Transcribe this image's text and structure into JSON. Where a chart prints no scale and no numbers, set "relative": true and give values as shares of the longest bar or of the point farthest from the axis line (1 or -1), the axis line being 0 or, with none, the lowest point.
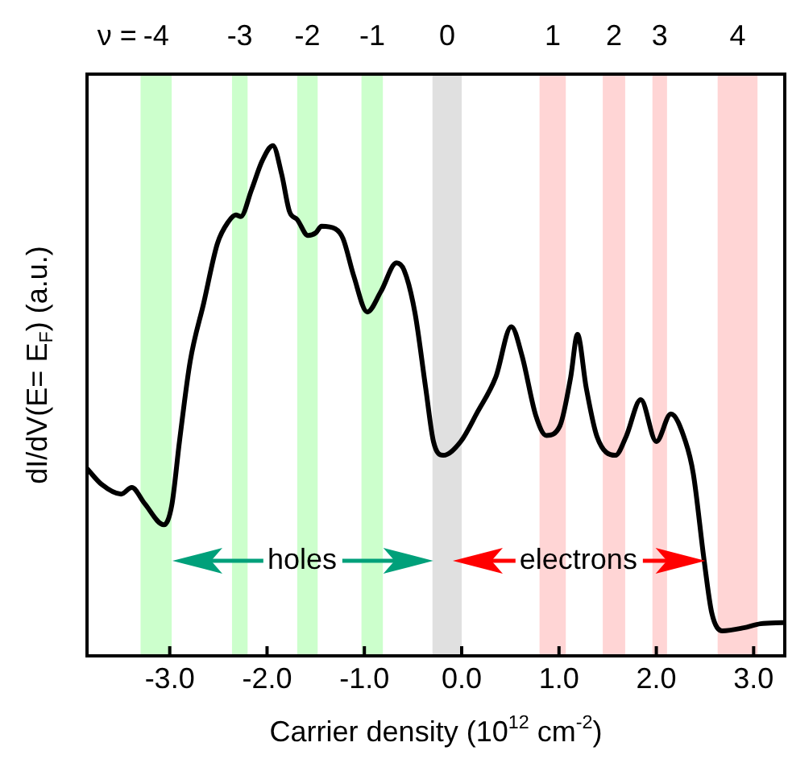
{
  "chart_data": {
    "type": "line",
    "relative": true,
    "xlabel": "Carrier density (10$^{12}$ cm$^{-2}$)",
    "ylabel": "dI/dV(E= E$_{F}$) (a.u.)",
    "xlim": [
      -3.85,
      3.32
    ],
    "xticks": [
      {
        "value": -3,
        "label": "-3.0"
      },
      {
        "value": -2,
        "label": "-2.0"
      },
      {
        "value": -1,
        "label": "-1.0"
      },
      {
        "value": 0,
        "label": "0.0"
      },
      {
        "value": 1,
        "label": "1.0"
      },
      {
        "value": 2,
        "label": "2.0"
      },
      {
        "value": 3,
        "label": "3.0"
      }
    ],
    "grid": false,
    "legend": false,
    "marker": "none",
    "line_style": "solid",
    "tick_labels": "x",
    "series": [
      {
        "color": "#000000",
        "x": [
          -3.85,
          -3.7,
          -3.5,
          -3.39,
          -3.26,
          -3.06,
          -2.98,
          -2.9,
          -2.79,
          -2.65,
          -2.51,
          -2.4,
          -2.32,
          -2.27,
          -2.16,
          -2.05,
          -1.94,
          -1.85,
          -1.77,
          -1.69,
          -1.58,
          -1.5,
          -1.44,
          -1.3,
          -1.22,
          -1.11,
          -0.97,
          -0.83,
          -0.67,
          -0.59,
          -0.48,
          -0.37,
          -0.29,
          -0.19,
          -0.01,
          0.16,
          0.35,
          0.51,
          0.62,
          0.76,
          0.87,
          1.01,
          1.12,
          1.19,
          1.28,
          1.39,
          1.58,
          1.69,
          1.84,
          2.0,
          2.15,
          2.3,
          2.38,
          2.49,
          2.57,
          2.68,
          2.9,
          3.07,
          3.3
        ],
        "values": [
          0.367,
          0.336,
          0.317,
          0.33,
          0.299,
          0.257,
          0.294,
          0.42,
          0.577,
          0.692,
          0.808,
          0.85,
          0.864,
          0.861,
          0.913,
          0.97,
          1.0,
          0.944,
          0.871,
          0.855,
          0.824,
          0.829,
          0.842,
          0.837,
          0.818,
          0.745,
          0.674,
          0.714,
          0.77,
          0.755,
          0.672,
          0.525,
          0.42,
          0.393,
          0.42,
          0.477,
          0.546,
          0.645,
          0.588,
          0.472,
          0.432,
          0.451,
          0.546,
          0.63,
          0.525,
          0.43,
          0.393,
          0.43,
          0.502,
          0.42,
          0.474,
          0.42,
          0.357,
          0.189,
          0.084,
          0.049,
          0.055,
          0.063,
          0.065
        ]
      }
    ],
    "bands": [
      {
        "axis": "x",
        "from": -3.3,
        "to": -2.98,
        "label": "-4",
        "color": "#ccffcc"
      },
      {
        "axis": "x",
        "from": -2.36,
        "to": -2.2,
        "label": "-3",
        "color": "#ccffcc"
      },
      {
        "axis": "x",
        "from": -1.69,
        "to": -1.48,
        "label": "-2",
        "color": "#ccffcc"
      },
      {
        "axis": "x",
        "from": -1.03,
        "to": -0.81,
        "label": "-1",
        "color": "#ccffcc"
      },
      {
        "axis": "x",
        "from": -0.3,
        "to": 0.0,
        "label": "0",
        "color": "#e0e0e0"
      },
      {
        "axis": "x",
        "from": 0.8,
        "to": 1.07,
        "label": "1",
        "color": "#ffd5d5"
      },
      {
        "axis": "x",
        "from": 1.45,
        "to": 1.68,
        "label": "2",
        "color": "#ffd5d5"
      },
      {
        "axis": "x",
        "from": 1.96,
        "to": 2.11,
        "label": "3",
        "color": "#ffd5d5"
      },
      {
        "axis": "x",
        "from": 2.63,
        "to": 3.04,
        "label": "4",
        "color": "#ffd5d5"
      }
    ],
    "annotations": [
      "ν =",
      "holes",
      "electrons"
    ]
  }
}
